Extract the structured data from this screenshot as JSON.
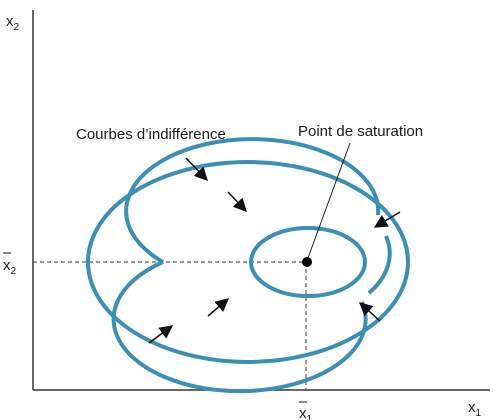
{
  "axes": {
    "y_label": {
      "base": "x",
      "sub": "2"
    },
    "x_label": {
      "base": "x",
      "sub": "1"
    },
    "y_mark": {
      "base": "x",
      "sub": "2",
      "bar": true
    },
    "x_mark": {
      "base": "x",
      "sub": "1",
      "bar": true
    }
  },
  "labels": {
    "curves": "Courbes d’indifférence",
    "saturation": "Point de saturation"
  },
  "colors": {
    "curve": "#3a8fb5",
    "axis": "#333333",
    "arrow": "#111111",
    "point": "#000000"
  }
}
